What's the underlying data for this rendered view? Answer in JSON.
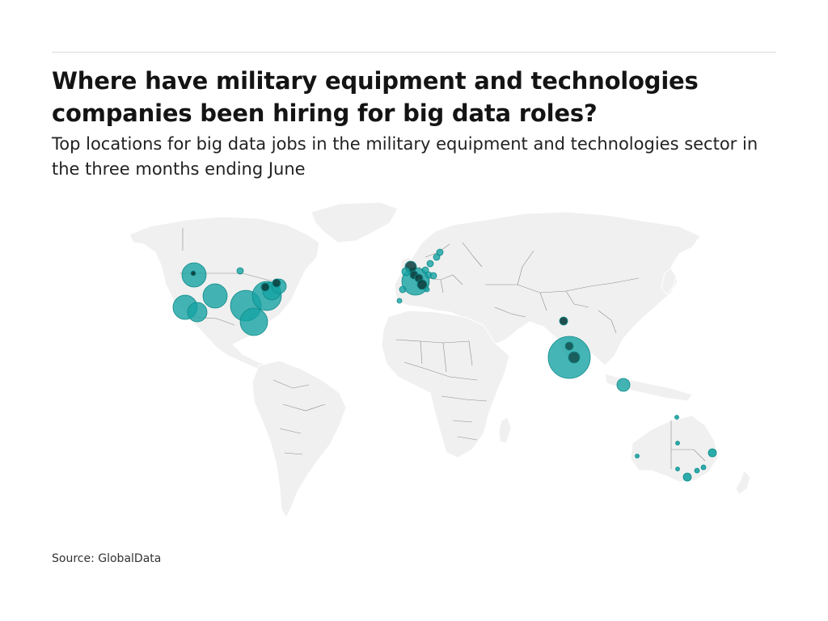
{
  "header": {
    "title": "Where have military equipment and technologies companies been hiring for big data roles?",
    "subtitle": "Top locations for big data jobs in the military equipment and technologies sector in the three months ending June"
  },
  "footer": {
    "source": "Source: GlobalData"
  },
  "colors": {
    "bubble": "#16a3a3",
    "land": "#f0f0f0",
    "border": "#8c8c8c"
  }
}
